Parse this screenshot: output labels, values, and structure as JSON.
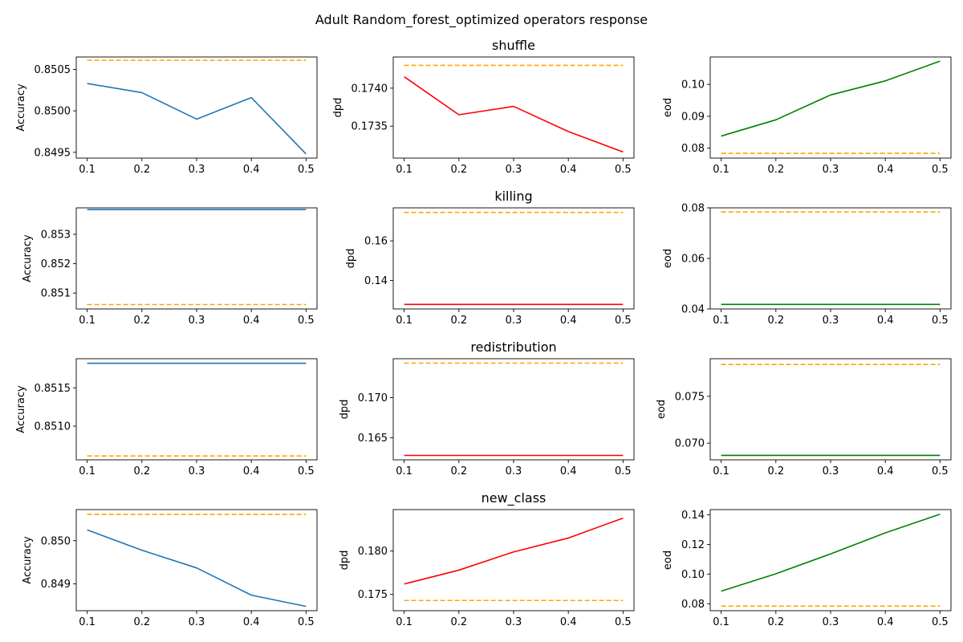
{
  "figure": {
    "title": "Adult Random_forest_optimized operators response",
    "colors": {
      "accuracy": "#1f77b4",
      "dpd": "#ff0000",
      "eod": "#008000",
      "baseline": "#ffa500"
    }
  },
  "chart_data": [
    {
      "type": "line",
      "operator": "shuffle",
      "title": "",
      "ylabel": "Accuracy",
      "x": [
        0.1,
        0.2,
        0.3,
        0.4,
        0.5
      ],
      "ylim": [
        0.84943,
        0.85065
      ],
      "yticks": [
        0.8495,
        0.85,
        0.8505
      ],
      "ytick_labels": [
        "0.8495",
        "0.8500",
        "0.8505"
      ],
      "series": [
        {
          "role": "metric",
          "color": "#1f77b4",
          "values": [
            0.85033,
            0.85022,
            0.8499,
            0.85016,
            0.84948
          ]
        },
        {
          "role": "baseline",
          "color": "#ffa500",
          "dashed": true,
          "values": [
            0.85061,
            0.85061,
            0.85061,
            0.85061,
            0.85061
          ]
        }
      ]
    },
    {
      "type": "line",
      "operator": "shuffle",
      "title": "shuffle",
      "ylabel": "dpd",
      "x": [
        0.1,
        0.2,
        0.3,
        0.4,
        0.5
      ],
      "ylim": [
        0.17308,
        0.17441
      ],
      "yticks": [
        0.1735,
        0.174
      ],
      "ytick_labels": [
        "0.1735",
        "0.1740"
      ],
      "series": [
        {
          "role": "metric",
          "color": "#ff0000",
          "values": [
            0.17415,
            0.17365,
            0.17376,
            0.17343,
            0.17316
          ]
        },
        {
          "role": "baseline",
          "color": "#ffa500",
          "dashed": true,
          "values": [
            0.1743,
            0.1743,
            0.1743,
            0.1743,
            0.1743
          ]
        }
      ]
    },
    {
      "type": "line",
      "operator": "shuffle",
      "title": "",
      "ylabel": "eod",
      "x": [
        0.1,
        0.2,
        0.3,
        0.4,
        0.5
      ],
      "ylim": [
        0.0769,
        0.1086
      ],
      "yticks": [
        0.08,
        0.09,
        0.1
      ],
      "ytick_labels": [
        "0.08",
        "0.09",
        "0.10"
      ],
      "series": [
        {
          "role": "metric",
          "color": "#008000",
          "values": [
            0.0838,
            0.0889,
            0.0967,
            0.1011,
            0.1073
          ]
        },
        {
          "role": "baseline",
          "color": "#ffa500",
          "dashed": true,
          "values": [
            0.0784,
            0.0784,
            0.0784,
            0.0784,
            0.0784
          ]
        }
      ]
    },
    {
      "type": "line",
      "operator": "killing",
      "title": "",
      "ylabel": "Accuracy",
      "x": [
        0.1,
        0.2,
        0.3,
        0.4,
        0.5
      ],
      "ylim": [
        0.85046,
        0.8539
      ],
      "yticks": [
        0.851,
        0.852,
        0.853
      ],
      "ytick_labels": [
        "0.851",
        "0.852",
        "0.853"
      ],
      "series": [
        {
          "role": "metric",
          "color": "#1f77b4",
          "values": [
            0.85384,
            0.85384,
            0.85384,
            0.85384,
            0.85384
          ]
        },
        {
          "role": "baseline",
          "color": "#ffa500",
          "dashed": true,
          "values": [
            0.85061,
            0.85061,
            0.85061,
            0.85061,
            0.85061
          ]
        }
      ]
    },
    {
      "type": "line",
      "operator": "killing",
      "title": "killing",
      "ylabel": "dpd",
      "x": [
        0.1,
        0.2,
        0.3,
        0.4,
        0.5
      ],
      "ylim": [
        0.1257,
        0.1766
      ],
      "yticks": [
        0.14,
        0.16
      ],
      "ytick_labels": [
        "0.14",
        "0.16"
      ],
      "series": [
        {
          "role": "metric",
          "color": "#ff0000",
          "values": [
            0.128,
            0.128,
            0.128,
            0.128,
            0.128
          ]
        },
        {
          "role": "baseline",
          "color": "#ffa500",
          "dashed": true,
          "values": [
            0.1743,
            0.1743,
            0.1743,
            0.1743,
            0.1743
          ]
        }
      ]
    },
    {
      "type": "line",
      "operator": "killing",
      "title": "",
      "ylabel": "eod",
      "x": [
        0.1,
        0.2,
        0.3,
        0.4,
        0.5
      ],
      "ylim": [
        0.04,
        0.08
      ],
      "yticks": [
        0.04,
        0.06,
        0.08
      ],
      "ytick_labels": [
        "0.04",
        "0.06",
        "0.08"
      ],
      "series": [
        {
          "role": "metric",
          "color": "#008000",
          "values": [
            0.0418,
            0.0418,
            0.0418,
            0.0418,
            0.0418
          ]
        },
        {
          "role": "baseline",
          "color": "#ffa500",
          "dashed": true,
          "values": [
            0.0784,
            0.0784,
            0.0784,
            0.0784,
            0.0784
          ]
        }
      ]
    },
    {
      "type": "line",
      "operator": "redistribution",
      "title": "",
      "ylabel": "Accuracy",
      "x": [
        0.1,
        0.2,
        0.3,
        0.4,
        0.5
      ],
      "ylim": [
        0.85056,
        0.85188
      ],
      "yticks": [
        0.851,
        0.8515
      ],
      "ytick_labels": [
        "0.8510",
        "0.8515"
      ],
      "series": [
        {
          "role": "metric",
          "color": "#1f77b4",
          "values": [
            0.85182,
            0.85182,
            0.85182,
            0.85182,
            0.85182
          ]
        },
        {
          "role": "baseline",
          "color": "#ffa500",
          "dashed": true,
          "values": [
            0.85061,
            0.85061,
            0.85061,
            0.85061,
            0.85061
          ]
        }
      ]
    },
    {
      "type": "line",
      "operator": "redistribution",
      "title": "redistribution",
      "ylabel": "dpd",
      "x": [
        0.1,
        0.2,
        0.3,
        0.4,
        0.5
      ],
      "ylim": [
        0.16225,
        0.17485
      ],
      "yticks": [
        0.165,
        0.17
      ],
      "ytick_labels": [
        "0.165",
        "0.170"
      ],
      "series": [
        {
          "role": "metric",
          "color": "#ff0000",
          "values": [
            0.1628,
            0.1628,
            0.1628,
            0.1628,
            0.1628
          ]
        },
        {
          "role": "baseline",
          "color": "#ffa500",
          "dashed": true,
          "values": [
            0.1743,
            0.1743,
            0.1743,
            0.1743,
            0.1743
          ]
        }
      ]
    },
    {
      "type": "line",
      "operator": "redistribution",
      "title": "",
      "ylabel": "eod",
      "x": [
        0.1,
        0.2,
        0.3,
        0.4,
        0.5
      ],
      "ylim": [
        0.06822,
        0.07902
      ],
      "yticks": [
        0.07,
        0.075
      ],
      "ytick_labels": [
        "0.070",
        "0.075"
      ],
      "series": [
        {
          "role": "metric",
          "color": "#008000",
          "values": [
            0.0687,
            0.0687,
            0.0687,
            0.0687,
            0.0687
          ]
        },
        {
          "role": "baseline",
          "color": "#ffa500",
          "dashed": true,
          "values": [
            0.0784,
            0.0784,
            0.0784,
            0.0784,
            0.0784
          ]
        }
      ]
    },
    {
      "type": "line",
      "operator": "new_class",
      "title": "",
      "ylabel": "Accuracy",
      "x": [
        0.1,
        0.2,
        0.3,
        0.4,
        0.5
      ],
      "ylim": [
        0.84838,
        0.85072
      ],
      "yticks": [
        0.849,
        0.85
      ],
      "ytick_labels": [
        "0.849",
        "0.850"
      ],
      "series": [
        {
          "role": "metric",
          "color": "#1f77b4",
          "values": [
            0.85025,
            0.84978,
            0.84937,
            0.84874,
            0.84848
          ]
        },
        {
          "role": "baseline",
          "color": "#ffa500",
          "dashed": true,
          "values": [
            0.85061,
            0.85061,
            0.85061,
            0.85061,
            0.85061
          ]
        }
      ]
    },
    {
      "type": "line",
      "operator": "new_class",
      "title": "new_class",
      "ylabel": "dpd",
      "x": [
        0.1,
        0.2,
        0.3,
        0.4,
        0.5
      ],
      "ylim": [
        0.17312,
        0.18478
      ],
      "yticks": [
        0.175,
        0.18
      ],
      "ytick_labels": [
        "0.175",
        "0.180"
      ],
      "series": [
        {
          "role": "metric",
          "color": "#ff0000",
          "values": [
            0.1762,
            0.1778,
            0.1799,
            0.1815,
            0.1838
          ]
        },
        {
          "role": "baseline",
          "color": "#ffa500",
          "dashed": true,
          "values": [
            0.1743,
            0.1743,
            0.1743,
            0.1743,
            0.1743
          ]
        }
      ]
    },
    {
      "type": "line",
      "operator": "new_class",
      "title": "",
      "ylabel": "eod",
      "x": [
        0.1,
        0.2,
        0.3,
        0.4,
        0.5
      ],
      "ylim": [
        0.0753,
        0.1435
      ],
      "yticks": [
        0.08,
        0.1,
        0.12,
        0.14
      ],
      "ytick_labels": [
        "0.08",
        "0.10",
        "0.12",
        "0.14"
      ],
      "series": [
        {
          "role": "metric",
          "color": "#008000",
          "values": [
            0.0885,
            0.1002,
            0.1136,
            0.1278,
            0.1404
          ]
        },
        {
          "role": "baseline",
          "color": "#ffa500",
          "dashed": true,
          "values": [
            0.0784,
            0.0784,
            0.0784,
            0.0784,
            0.0784
          ]
        }
      ]
    }
  ]
}
